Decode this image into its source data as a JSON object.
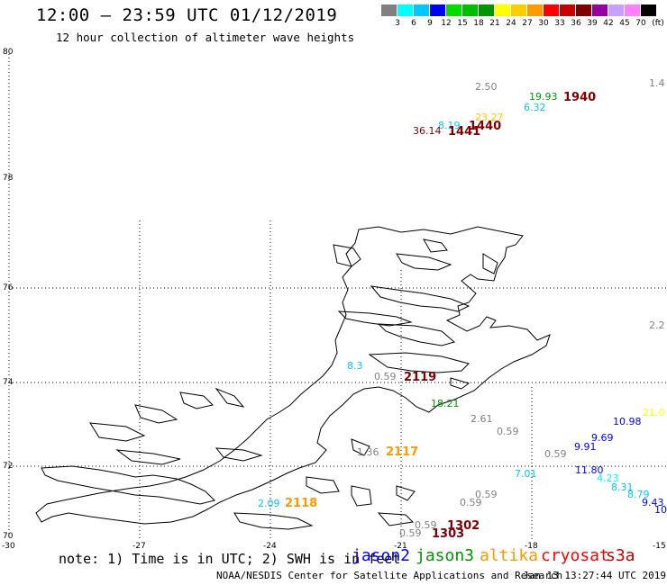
{
  "header": {
    "title": "12:00 – 23:59 UTC 01/12/2019",
    "subtitle": "12 hour collection of altimeter wave heights"
  },
  "legend": {
    "unit_label": "(ft)",
    "scale": [
      {
        "label": "3",
        "color": "#808080"
      },
      {
        "label": "6",
        "color": "#00ffff"
      },
      {
        "label": "9",
        "color": "#00c8ff"
      },
      {
        "label": "12",
        "color": "#0000ff"
      },
      {
        "label": "15",
        "color": "#00dc00"
      },
      {
        "label": "18",
        "color": "#00be00"
      },
      {
        "label": "21",
        "color": "#009600"
      },
      {
        "label": "24",
        "color": "#ffff00"
      },
      {
        "label": "27",
        "color": "#ffcc00"
      },
      {
        "label": "30",
        "color": "#ff9900"
      },
      {
        "label": "33",
        "color": "#ff0000"
      },
      {
        "label": "36",
        "color": "#c80000"
      },
      {
        "label": "39",
        "color": "#7f0000"
      },
      {
        "label": "42",
        "color": "#9600a0"
      },
      {
        "label": "45",
        "color": "#c8a0ff"
      },
      {
        "label": "70",
        "color": "#ff80ff"
      },
      {
        "label": "",
        "color": "#000000"
      }
    ]
  },
  "map": {
    "lat_labels": [
      "80",
      "78",
      "76",
      "74",
      "72",
      "70"
    ],
    "lon_labels": [
      "-30",
      "-27",
      "-24",
      "-21",
      "-18",
      "-15"
    ],
    "observations": [
      {
        "text": "2.50",
        "color": "#808080"
      },
      {
        "text": "19.93",
        "color": "#009600"
      },
      {
        "text": "1940",
        "color": "#7f0000"
      },
      {
        "text": "1.4",
        "color": "#808080"
      },
      {
        "text": "6.32",
        "color": "#00c8ff"
      },
      {
        "text": "23.27",
        "color": "#ffcc00"
      },
      {
        "text": "8.19",
        "color": "#00c8ff"
      },
      {
        "text": "1440",
        "color": "#7f0000"
      },
      {
        "text": "36.14",
        "color": "#7f0000"
      },
      {
        "text": "1441",
        "color": "#7f0000"
      },
      {
        "text": "2.2",
        "color": "#808080"
      },
      {
        "text": "8.3",
        "color": "#00c8ff"
      },
      {
        "text": "0.59",
        "color": "#808080"
      },
      {
        "text": "2119",
        "color": "#7f0000"
      },
      {
        "text": "18.21",
        "color": "#009600"
      },
      {
        "text": "21.0",
        "color": "#ffff00"
      },
      {
        "text": "10.98",
        "color": "#0000ff"
      },
      {
        "text": "2.61",
        "color": "#808080"
      },
      {
        "text": "0.59",
        "color": "#808080"
      },
      {
        "text": "9.69",
        "color": "#0000ff"
      },
      {
        "text": "9.91",
        "color": "#0000ff"
      },
      {
        "text": "0.59",
        "color": "#808080"
      },
      {
        "text": "1.36",
        "color": "#808080"
      },
      {
        "text": "2117",
        "color": "#ff9900"
      },
      {
        "text": "7.01",
        "color": "#00c8ff"
      },
      {
        "text": "11.80",
        "color": "#0000ff"
      },
      {
        "text": "4.23",
        "color": "#00ffff"
      },
      {
        "text": "8.31",
        "color": "#00c8ff"
      },
      {
        "text": "8.79",
        "color": "#00c8ff"
      },
      {
        "text": "9.43",
        "color": "#0000ff"
      },
      {
        "text": "10.",
        "color": "#0000ff"
      },
      {
        "text": "2.09",
        "color": "#00c8ff"
      },
      {
        "text": "2118",
        "color": "#ff9900"
      },
      {
        "text": "0.59",
        "color": "#808080"
      },
      {
        "text": "0.59",
        "color": "#808080"
      },
      {
        "text": "0.59",
        "color": "#808080"
      },
      {
        "text": "1302",
        "color": "#7f0000"
      },
      {
        "text": "0.59",
        "color": "#808080"
      },
      {
        "text": "1303",
        "color": "#7f0000"
      }
    ]
  },
  "footer": {
    "note": "note: 1) Time is in UTC; 2) SWH is in feet",
    "satellites": [
      {
        "name": "jason2",
        "color": "#0000ff"
      },
      {
        "name": "jason3",
        "color": "#009600"
      },
      {
        "name": "altika",
        "color": "#ff9900"
      },
      {
        "name": "cryosat",
        "color": "#ff0000"
      },
      {
        "name": "s3a",
        "color": "#c80000"
      }
    ],
    "credit": "NOAA/NESDIS Center for Satellite Applications and Research",
    "timestamp": "Jan 13 13:27:44 UTC 2019"
  }
}
